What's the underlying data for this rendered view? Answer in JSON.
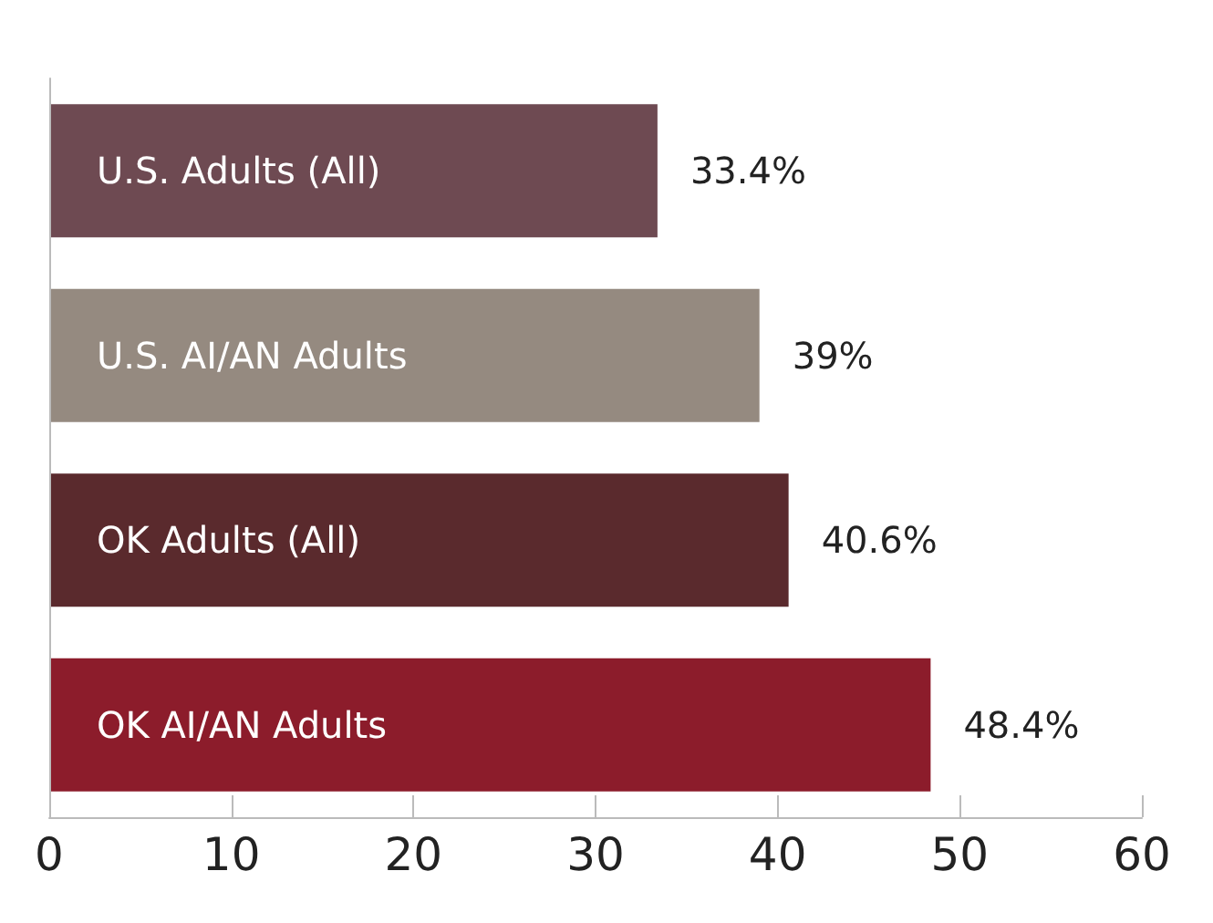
{
  "chart_data": {
    "type": "bar",
    "orientation": "horizontal",
    "categories": [
      "U.S. Adults (All)",
      "U.S. AI/AN Adults",
      "OK Adults (All)",
      "OK AI/AN Adults"
    ],
    "values": [
      33.4,
      39,
      40.6,
      48.4
    ],
    "colors": [
      "#6e4a52",
      "#958a80",
      "#5a2a2d",
      "#8c1c2b"
    ],
    "value_labels": [
      "33.4%",
      "39%",
      "40.6%",
      "48.4%"
    ],
    "xlim": [
      0,
      60
    ],
    "xticks": [
      0,
      10,
      20,
      30,
      40,
      50,
      60
    ]
  }
}
